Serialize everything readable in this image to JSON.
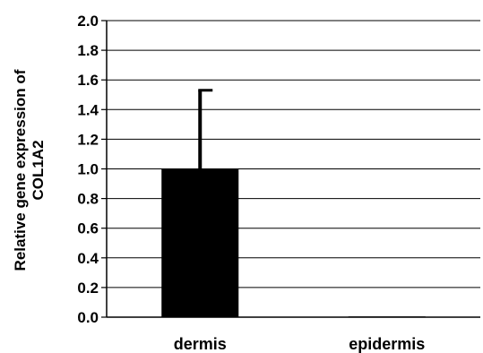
{
  "chart_data": {
    "type": "bar",
    "title": "",
    "xlabel": "",
    "ylabel_lines": [
      "Relative gene expression of",
      "COL1A2"
    ],
    "categories": [
      "dermis",
      "epidermis"
    ],
    "values": [
      1.0,
      0.005
    ],
    "error_plus": [
      0.53,
      0.0
    ],
    "ylim": [
      0,
      2.0
    ],
    "yticks": [
      0.0,
      0.2,
      0.4,
      0.6,
      0.8,
      1.0,
      1.2,
      1.4,
      1.6,
      1.8,
      2.0
    ],
    "ytick_labels": [
      "0.0",
      "0.2",
      "0.4",
      "0.6",
      "0.8",
      "1.0",
      "1.2",
      "1.4",
      "1.6",
      "1.8",
      "2.0"
    ],
    "grid": "horizontal",
    "legend": "none",
    "bar_color": "#000000"
  }
}
